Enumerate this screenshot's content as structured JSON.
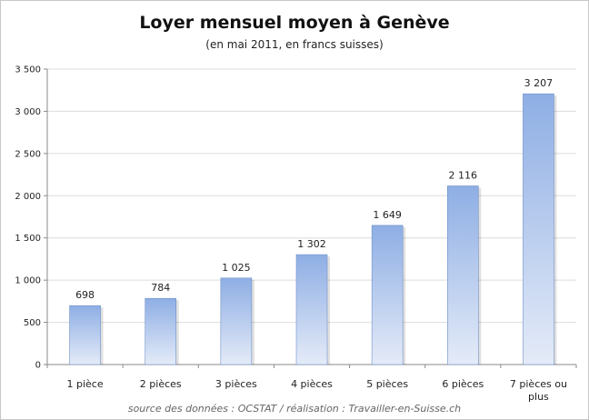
{
  "chart_data": {
    "type": "bar",
    "title": "Loyer mensuel moyen à Genève",
    "subtitle": "(en mai 2011, en francs suisses)",
    "categories": [
      "1 pièce",
      "2 pièces",
      "3 pièces",
      "4 pièces",
      "5 pièces",
      "6 pièces",
      "7 pièces ou plus"
    ],
    "category_lines": [
      [
        "1 pièce"
      ],
      [
        "2 pièces"
      ],
      [
        "3 pièces"
      ],
      [
        "4 pièces"
      ],
      [
        "5 pièces"
      ],
      [
        "6 pièces"
      ],
      [
        "7 pièces ou",
        "plus"
      ]
    ],
    "values": [
      698,
      784,
      1025,
      1302,
      1649,
      2116,
      3207
    ],
    "data_labels": [
      "698",
      "784",
      "1 025",
      "1 302",
      "1 649",
      "2 116",
      "3 207"
    ],
    "yticks": [
      0,
      500,
      1000,
      1500,
      2000,
      2500,
      3000,
      3500
    ],
    "ytick_labels": [
      "0",
      "500",
      "1 000",
      "1 500",
      "2 000",
      "2 500",
      "3 000",
      "3 500"
    ],
    "ylim": [
      0,
      3500
    ],
    "xlabel": "",
    "ylabel": "",
    "grid": true,
    "legend": "none",
    "colors": {
      "bar_top": "#8eaee4",
      "bar_bottom": "#e4ebf8",
      "bar_edge": "#6f90c8",
      "grid": "#dcdcdc",
      "axis": "#8a8a8a"
    }
  },
  "source": "source des données : OCSTAT / réalisation : Travailler-en-Suisse.ch"
}
